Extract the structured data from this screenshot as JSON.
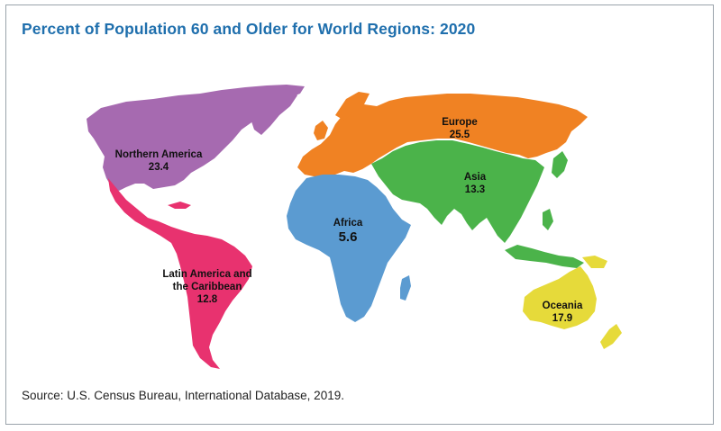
{
  "title": "Percent of Population 60 and Older for World Regions: 2020",
  "source": "Source: U.S. Census Bureau, International Database, 2019.",
  "regions": {
    "northern_america": {
      "name": "Northern America",
      "value": "23.4",
      "color": "#a66ab0"
    },
    "latin_america": {
      "name_line1": "Latin America and",
      "name_line2": "the Caribbean",
      "value": "12.8",
      "color": "#e8326f"
    },
    "europe": {
      "name": "Europe",
      "value": "25.5",
      "color": "#f08223"
    },
    "africa": {
      "name": "Africa",
      "value": "5.6",
      "color": "#5b9bd1"
    },
    "asia": {
      "name": "Asia",
      "value": "13.3",
      "color": "#4bb34a"
    },
    "oceania": {
      "name": "Oceania",
      "value": "17.9",
      "color": "#e6da3a"
    }
  }
}
